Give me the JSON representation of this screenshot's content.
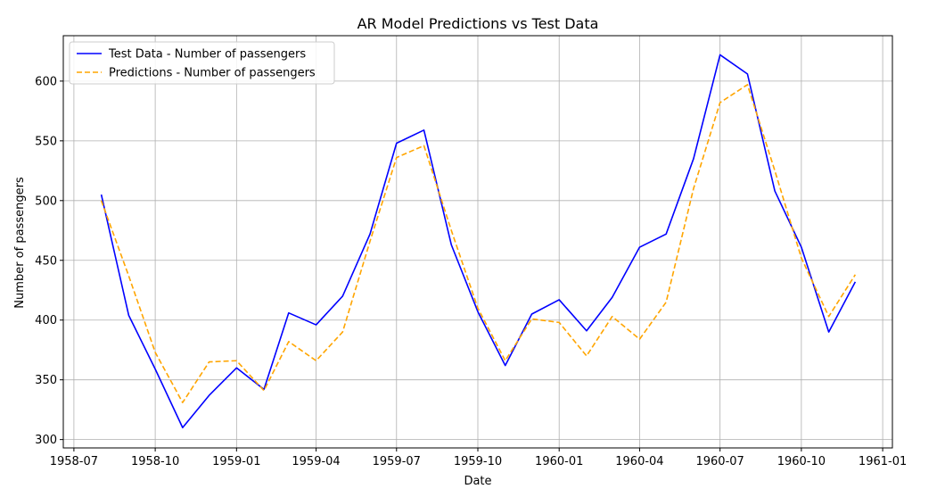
{
  "chart_data": {
    "type": "line",
    "title": "AR Model Predictions vs Test Data",
    "xlabel": "Date",
    "ylabel": "Number of passengers",
    "x_type": "date",
    "xlim": [
      "1958-06-19",
      "1961-01-12"
    ],
    "ylim": [
      293,
      638
    ],
    "x_ticks": [
      "1958-07",
      "1958-10",
      "1959-01",
      "1959-04",
      "1959-07",
      "1959-10",
      "1960-01",
      "1960-04",
      "1960-07",
      "1960-10",
      "1961-01"
    ],
    "y_ticks": [
      300,
      350,
      400,
      450,
      500,
      550,
      600
    ],
    "grid": true,
    "legend_position": "top-left",
    "x": [
      "1958-08-01",
      "1958-09-01",
      "1958-10-01",
      "1958-11-01",
      "1958-12-01",
      "1959-01-01",
      "1959-02-01",
      "1959-03-01",
      "1959-04-01",
      "1959-05-01",
      "1959-06-01",
      "1959-07-01",
      "1959-08-01",
      "1959-09-01",
      "1959-10-01",
      "1959-11-01",
      "1959-12-01",
      "1960-01-01",
      "1960-02-01",
      "1960-03-01",
      "1960-04-01",
      "1960-05-01",
      "1960-06-01",
      "1960-07-01",
      "1960-08-01",
      "1960-09-01",
      "1960-10-01",
      "1960-11-01",
      "1960-12-01"
    ],
    "series": [
      {
        "name": "Test Data - Number of passengers",
        "color": "#0000ff",
        "style": "solid",
        "values": [
          505,
          404,
          359,
          310,
          337,
          360,
          342,
          406,
          396,
          420,
          472,
          548,
          559,
          463,
          407,
          362,
          405,
          417,
          391,
          419,
          461,
          472,
          535,
          622,
          606,
          508,
          461,
          390,
          432
        ]
      },
      {
        "name": "Predictions - Number of passengers",
        "color": "#ffa500",
        "style": "dashed",
        "values": [
          500,
          437,
          373,
          331,
          365,
          366,
          341,
          382,
          366,
          390,
          466,
          536,
          546,
          475,
          410,
          366,
          401,
          398,
          370,
          403,
          384,
          415,
          510,
          582,
          597,
          525,
          452,
          403,
          438
        ]
      }
    ]
  }
}
